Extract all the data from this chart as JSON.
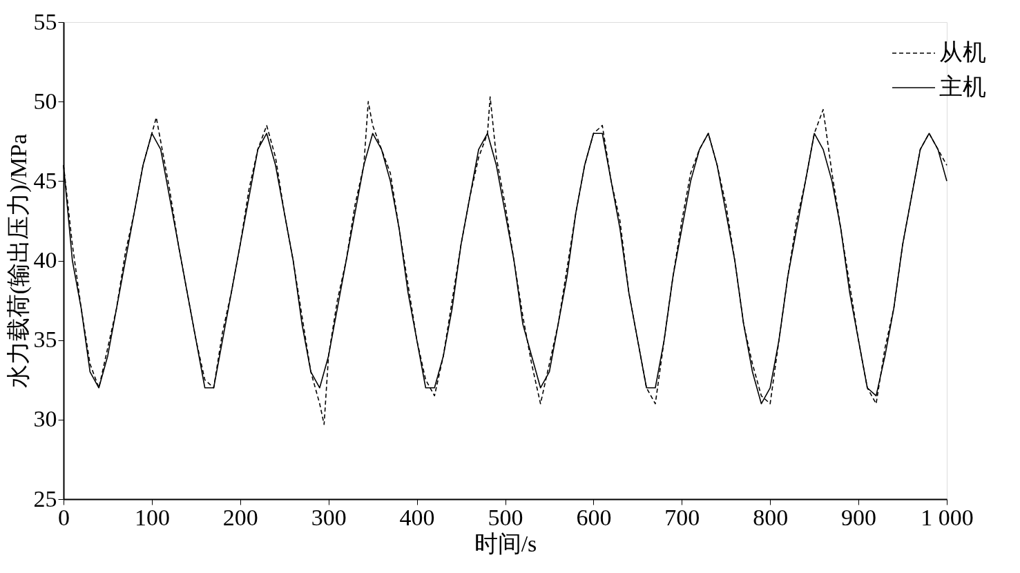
{
  "chart_data": {
    "type": "line",
    "xlabel": "时间/s",
    "ylabel": "水力载荷(输出压力)/MPa",
    "xlim": [
      0,
      1000
    ],
    "ylim": [
      25,
      55
    ],
    "xticks": [
      0,
      100,
      200,
      300,
      400,
      500,
      600,
      700,
      800,
      900,
      {
        "value": 1000,
        "label": "1 000"
      }
    ],
    "yticks": [
      25,
      30,
      35,
      40,
      45,
      50,
      55
    ],
    "grid": false,
    "legend": "top right",
    "marker": "none",
    "series": [
      {
        "name": "从机",
        "color": "#000000",
        "line_style": "dashed",
        "x": [
          0,
          10,
          20,
          30,
          40,
          50,
          60,
          70,
          80,
          90,
          100,
          105,
          110,
          120,
          130,
          140,
          150,
          160,
          170,
          180,
          190,
          200,
          210,
          220,
          230,
          240,
          250,
          260,
          270,
          280,
          290,
          295,
          300,
          310,
          320,
          330,
          340,
          345,
          350,
          360,
          370,
          380,
          390,
          400,
          410,
          420,
          430,
          440,
          450,
          460,
          470,
          480,
          483,
          490,
          500,
          510,
          520,
          530,
          540,
          550,
          560,
          570,
          580,
          590,
          600,
          610,
          620,
          630,
          640,
          650,
          660,
          670,
          680,
          690,
          700,
          710,
          720,
          730,
          740,
          750,
          760,
          770,
          780,
          790,
          800,
          810,
          820,
          830,
          840,
          850,
          860,
          870,
          880,
          890,
          900,
          910,
          920,
          930,
          940,
          950,
          960,
          970,
          980,
          990,
          1000
        ],
        "values": [
          46,
          41,
          37,
          33.5,
          32,
          34.5,
          37,
          40.5,
          43,
          46,
          48,
          49,
          47.5,
          44.5,
          41,
          38,
          35,
          32.5,
          32,
          35.5,
          38,
          41,
          44.5,
          47,
          48.5,
          46.5,
          43,
          40,
          36.5,
          33,
          31,
          29.7,
          34,
          37.5,
          40,
          43.5,
          46,
          50,
          48.5,
          47,
          45.5,
          42,
          38.5,
          35,
          32.5,
          31.5,
          34,
          37.5,
          41,
          44,
          46.5,
          48,
          50.3,
          46.5,
          43.5,
          40,
          36.5,
          33.5,
          31,
          33.5,
          36,
          39.5,
          43,
          46,
          48,
          48.5,
          45,
          42.5,
          38,
          35,
          32,
          31,
          35,
          39,
          42.5,
          45.5,
          47,
          48,
          46,
          43.5,
          40,
          36,
          33.5,
          31.5,
          31,
          35,
          39,
          42.5,
          45,
          48,
          49.5,
          45.5,
          42,
          38.5,
          35,
          32,
          31,
          34.5,
          37,
          41,
          44,
          47,
          48,
          47,
          46
        ]
      },
      {
        "name": "主机",
        "color": "#000000",
        "line_style": "solid",
        "x": [
          0,
          10,
          20,
          30,
          40,
          50,
          60,
          70,
          80,
          90,
          100,
          110,
          120,
          130,
          140,
          150,
          160,
          170,
          180,
          190,
          200,
          210,
          220,
          230,
          240,
          250,
          260,
          270,
          280,
          290,
          300,
          310,
          320,
          330,
          340,
          350,
          360,
          370,
          380,
          390,
          400,
          410,
          420,
          430,
          440,
          450,
          460,
          470,
          480,
          490,
          500,
          510,
          520,
          530,
          540,
          550,
          560,
          570,
          580,
          590,
          600,
          610,
          620,
          630,
          640,
          650,
          660,
          670,
          680,
          690,
          700,
          710,
          720,
          730,
          740,
          750,
          760,
          770,
          780,
          790,
          800,
          810,
          820,
          830,
          840,
          850,
          860,
          870,
          880,
          890,
          900,
          910,
          920,
          930,
          940,
          950,
          960,
          970,
          980,
          990,
          1000
        ],
        "values": [
          46,
          40,
          37,
          33,
          32,
          34,
          37,
          40,
          43,
          46,
          48,
          47,
          44,
          41,
          38,
          35,
          32,
          32,
          35,
          38,
          41,
          44,
          47,
          48,
          46,
          43,
          40,
          36,
          33,
          32,
          34,
          37,
          40,
          43,
          46,
          48,
          47,
          45,
          42,
          38,
          35,
          32,
          32,
          34,
          37,
          41,
          44,
          47,
          48,
          46,
          43,
          40,
          36,
          34,
          32,
          33,
          36,
          39,
          43,
          46,
          48,
          48,
          45,
          42,
          38,
          35,
          32,
          32,
          35,
          39,
          42,
          45,
          47,
          48,
          46,
          43,
          40,
          36,
          33,
          31,
          32,
          35,
          39,
          42,
          45,
          48,
          47,
          45,
          42,
          38,
          35,
          32,
          31.5,
          34,
          37,
          41,
          44,
          47,
          48,
          47,
          45
        ]
      }
    ]
  }
}
